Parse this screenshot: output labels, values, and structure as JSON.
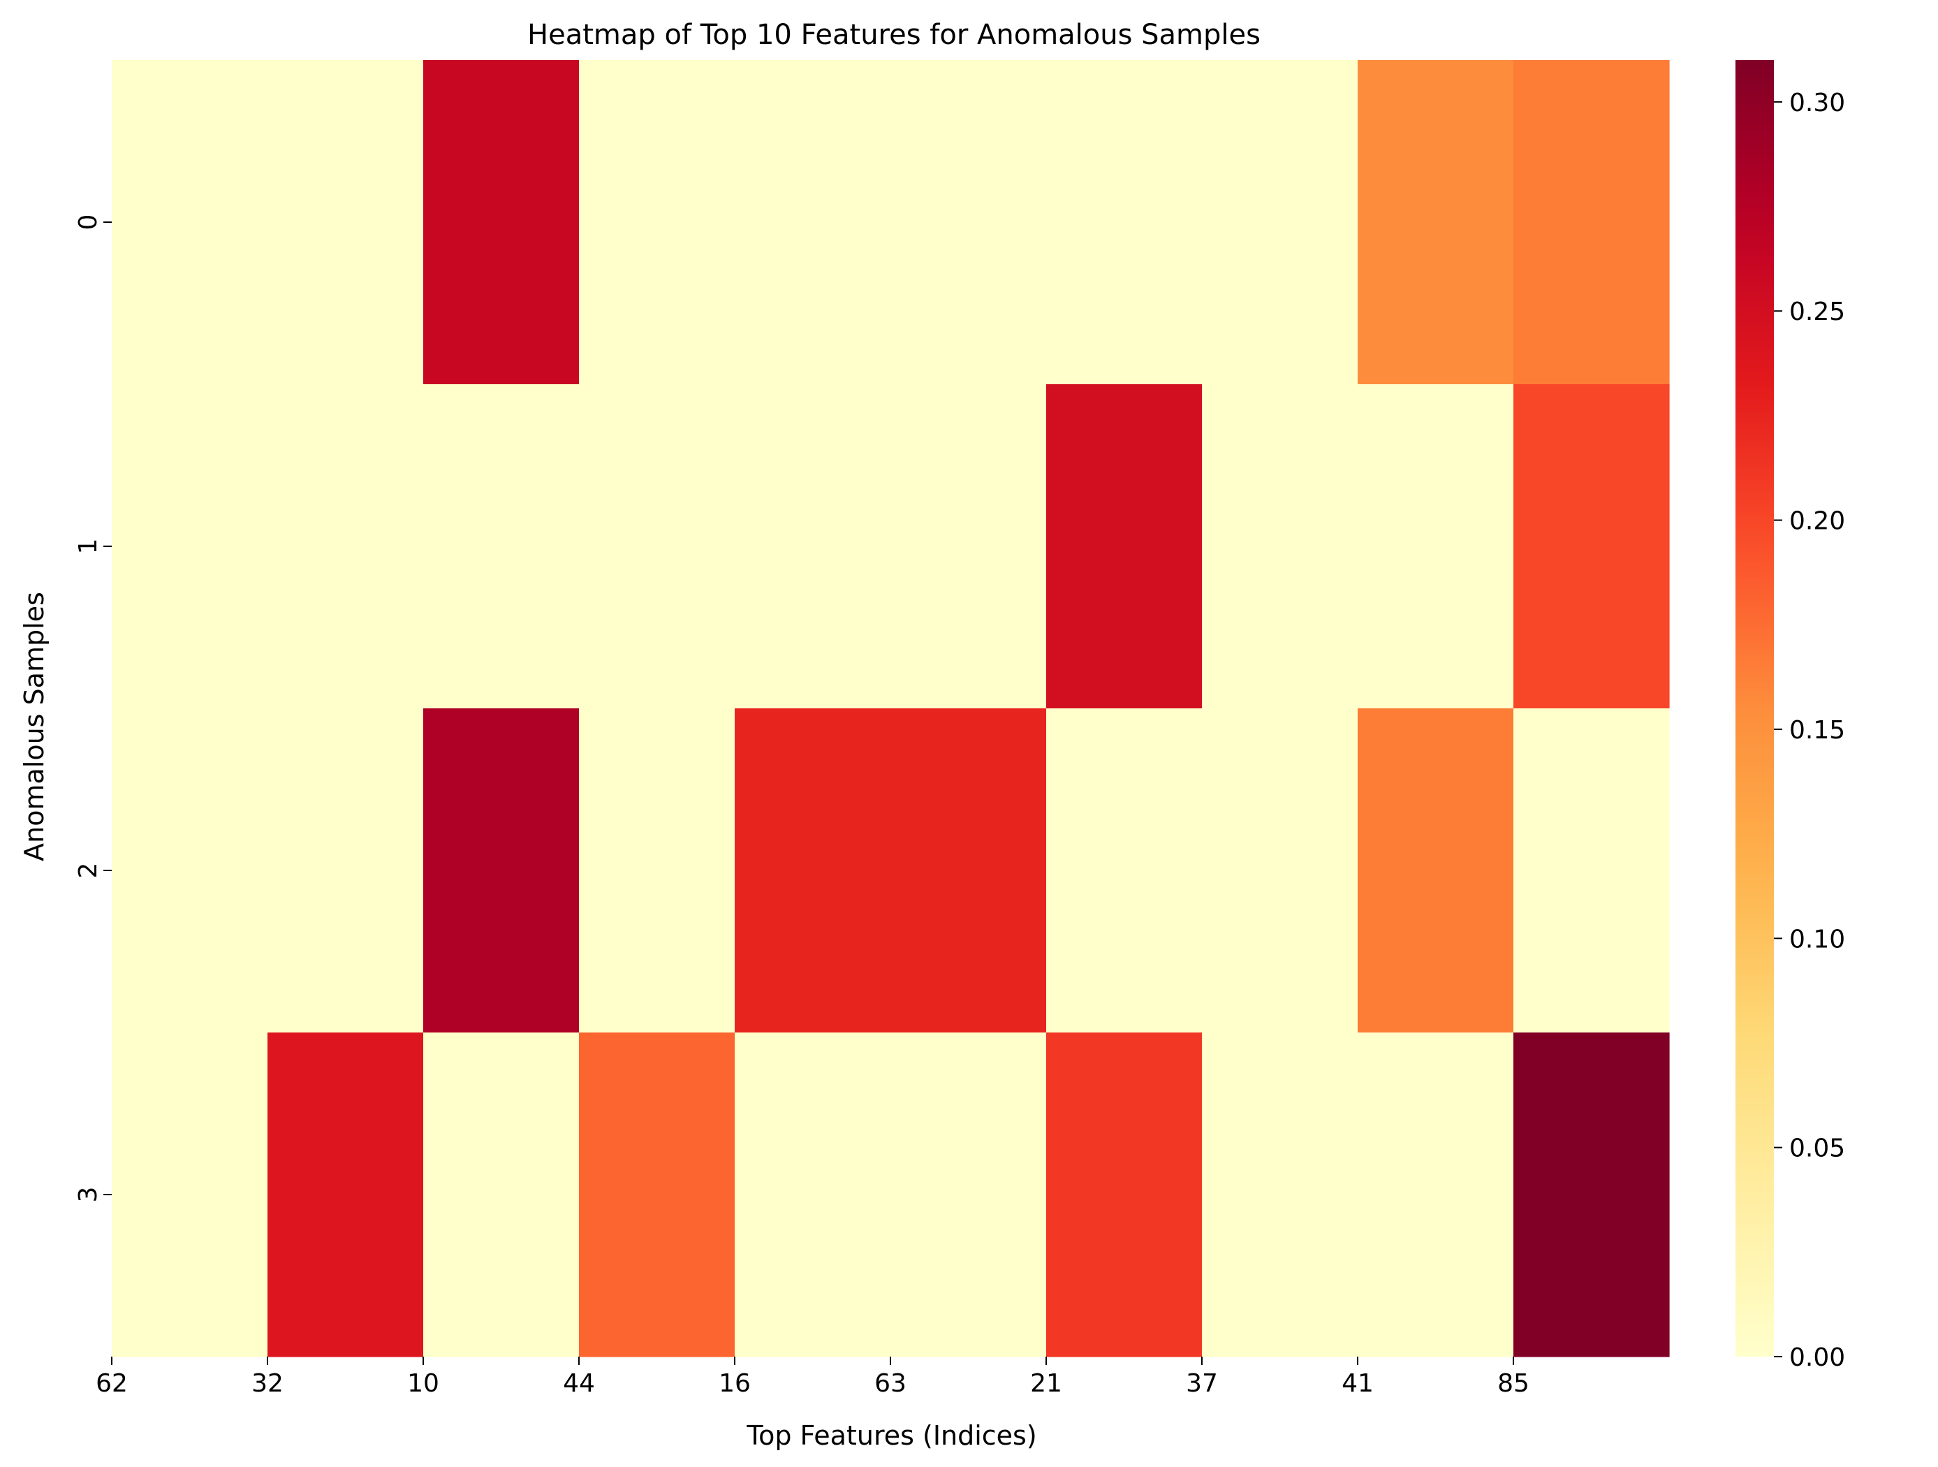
{
  "chart_data": {
    "type": "heatmap",
    "title": "Heatmap of Top 10 Features for Anomalous Samples",
    "xlabel": "Top Features (Indices)",
    "ylabel": "Anomalous Samples",
    "x_tick_labels": [
      "62",
      "32",
      "10",
      "44",
      "16",
      "63",
      "21",
      "37",
      "41",
      "85"
    ],
    "y_tick_labels": [
      "0",
      "1",
      "2",
      "3"
    ],
    "values": [
      [
        0,
        0,
        0.26,
        0,
        0,
        0,
        0,
        0,
        0.155,
        0.165
      ],
      [
        0,
        0,
        0,
        0,
        0,
        0,
        0.25,
        0,
        0,
        0.2
      ],
      [
        0,
        0,
        0.28,
        0,
        0.225,
        0.225,
        0,
        0,
        0.165,
        0
      ],
      [
        0,
        0.24,
        0,
        0.18,
        0,
        0,
        0.21,
        0,
        0,
        0.31
      ]
    ],
    "colorbar": {
      "min": 0,
      "max": 0.31,
      "ticks": [
        "0.00",
        "0.05",
        "0.10",
        "0.15",
        "0.20",
        "0.25",
        "0.30"
      ],
      "colormap": "YlOrRd"
    },
    "grid": false,
    "legend": "colorbar-right"
  }
}
